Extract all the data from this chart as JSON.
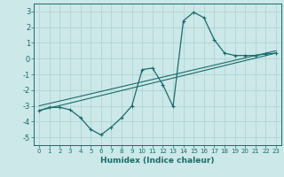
{
  "xlabel": "Humidex (Indice chaleur)",
  "background_color": "#cce8e8",
  "grid_color": "#b0d4d4",
  "line_color": "#1a6b6b",
  "xlim": [
    -0.5,
    23.5
  ],
  "ylim": [
    -5.5,
    3.5
  ],
  "xticks": [
    0,
    1,
    2,
    3,
    4,
    5,
    6,
    7,
    8,
    9,
    10,
    11,
    12,
    13,
    14,
    15,
    16,
    17,
    18,
    19,
    20,
    21,
    22,
    23
  ],
  "yticks": [
    -5,
    -4,
    -3,
    -2,
    -1,
    0,
    1,
    2,
    3
  ],
  "curve_x": [
    0,
    1,
    2,
    3,
    4,
    5,
    6,
    7,
    8,
    9,
    10,
    11,
    12,
    13,
    14,
    15,
    16,
    17,
    18,
    19,
    20,
    21,
    22,
    23
  ],
  "curve_y": [
    -3.3,
    -3.1,
    -3.1,
    -3.25,
    -3.75,
    -4.5,
    -4.85,
    -4.35,
    -3.75,
    -3.0,
    -0.7,
    -0.6,
    -1.65,
    -3.05,
    2.4,
    2.95,
    2.6,
    1.2,
    0.35,
    0.2,
    0.2,
    0.2,
    0.3,
    0.35
  ],
  "line2_x": [
    0,
    23
  ],
  "line2_y": [
    -3.3,
    0.35
  ],
  "line3_x": [
    0,
    23
  ],
  "line3_y": [
    -3.0,
    0.5
  ],
  "marker": "+"
}
